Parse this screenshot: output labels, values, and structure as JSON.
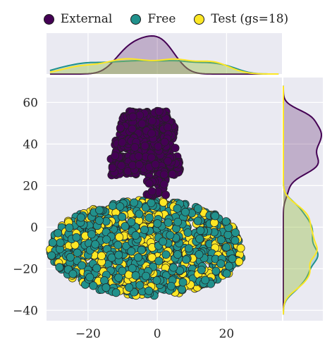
{
  "chart_data": {
    "type": "scatter",
    "xlim": [
      -32,
      36
    ],
    "ylim": [
      -45,
      72
    ],
    "xticks": [
      "−20",
      "0",
      "20"
    ],
    "yticks": [
      "−40",
      "−20",
      "0",
      "20",
      "40",
      "60"
    ],
    "grid": true,
    "legend_placement": "top-center",
    "series": [
      {
        "name": "External",
        "color": "#440154",
        "cluster": {
          "x_range": [
            -14,
            9
          ],
          "y_range": [
            14,
            56
          ],
          "count": 520
        }
      },
      {
        "name": "Free",
        "color": "#21918c",
        "cluster": {
          "x_range": [
            -38,
            26
          ],
          "y_range": [
            -32,
            13
          ],
          "count": 700
        }
      },
      {
        "name": "Test (gs=18)",
        "color": "#fde725",
        "cluster": {
          "x_range": [
            -36,
            24
          ],
          "y_range": [
            -32,
            13
          ],
          "count": 520
        }
      }
    ]
  }
}
